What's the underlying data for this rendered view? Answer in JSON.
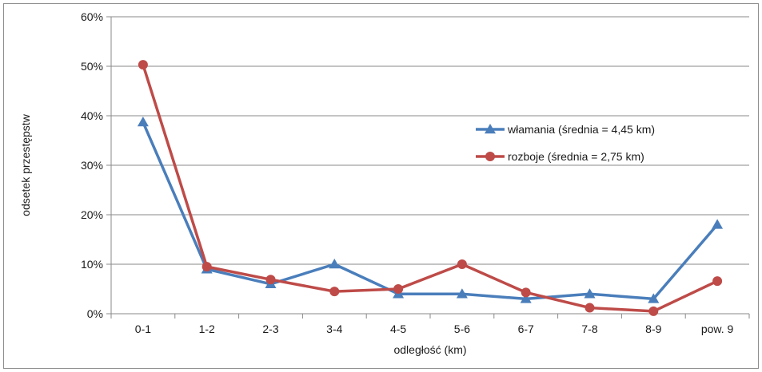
{
  "chart_data": {
    "type": "line",
    "title": "",
    "xlabel": "odległość (km)",
    "ylabel": "odsetek przestępstw",
    "categories": [
      "0-1",
      "1-2",
      "2-3",
      "3-4",
      "4-5",
      "5-6",
      "6-7",
      "7-8",
      "8-9",
      "pow. 9"
    ],
    "ylim": [
      0,
      60
    ],
    "yticks": [
      0,
      10,
      20,
      30,
      40,
      50,
      60
    ],
    "ytick_labels": [
      "0%",
      "10%",
      "20%",
      "30%",
      "40%",
      "50%",
      "60%"
    ],
    "grid": true,
    "legend_position": "right",
    "series": [
      {
        "name": "włamania (średnia = 4,45 km)",
        "color": "#4a7ebb",
        "marker": "triangle",
        "values": [
          38.7,
          9.0,
          6.0,
          10.0,
          4.0,
          4.0,
          3.0,
          4.0,
          3.0,
          18.0
        ]
      },
      {
        "name": "rozboje (średnia = 2,75 km)",
        "color": "#be4b48",
        "marker": "circle",
        "values": [
          50.3,
          9.5,
          6.9,
          4.5,
          5.0,
          10.0,
          4.3,
          1.2,
          0.5,
          6.6
        ]
      }
    ]
  }
}
